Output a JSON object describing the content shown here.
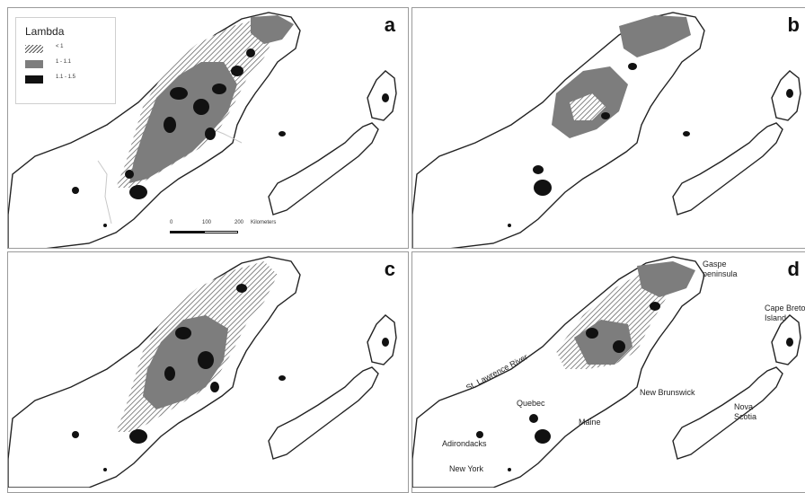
{
  "panels": [
    {
      "letter": "a"
    },
    {
      "letter": "b"
    },
    {
      "letter": "c"
    },
    {
      "letter": "d"
    }
  ],
  "legend": {
    "title": "Lambda",
    "items": [
      {
        "label": "< 1",
        "fill": "hatch"
      },
      {
        "label": "1 - 1.1",
        "fill": "#7d7d7d"
      },
      {
        "label": "1.1 - 1.5",
        "fill": "#111111"
      }
    ]
  },
  "scale": {
    "ticks": [
      "0",
      "100",
      "200"
    ],
    "unit": "Kilometers"
  },
  "places": {
    "gaspe": "Gaspe\npeninsula",
    "cape_breton": "Cape Breton\nIsland",
    "st_lawrence": "St. Lawrence River",
    "quebec": "Quebec",
    "new_brunswick": "New Brunswick",
    "nova_scotia": "Nova\nScotia",
    "maine": "Maine",
    "adirondacks": "Adirondacks",
    "new_york": "New York"
  },
  "colors": {
    "grey": "#7d7d7d",
    "black": "#111111",
    "outline": "#222222",
    "border": "#c8c8c8"
  }
}
